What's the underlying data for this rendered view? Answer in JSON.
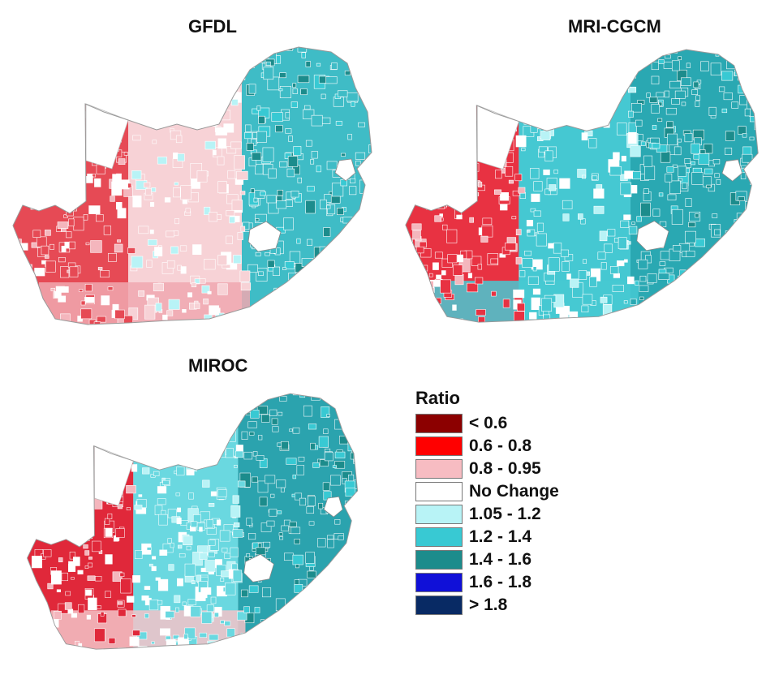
{
  "panels": [
    {
      "title": "GFDL",
      "west": "#e64a55",
      "central": "#f7d2d6",
      "east": "#3fbcc6",
      "south": "#f0a8b0"
    },
    {
      "title": "MRI-CGCM",
      "west": "#e83242",
      "central": "#45c8d2",
      "east": "#2aa8b2",
      "south": "#47c9d2"
    },
    {
      "title": "MIROC",
      "west": "#e0283a",
      "central": "#6ad8e0",
      "east": "#2ba3ae",
      "south": "#f3c3c8"
    }
  ],
  "legend": {
    "title": "Ratio",
    "items": [
      {
        "label": "< 0.6",
        "color": "#8c0000"
      },
      {
        "label": "0.6 - 0.8",
        "color": "#ff0000"
      },
      {
        "label": "0.8 - 0.95",
        "color": "#f7bcc2"
      },
      {
        "label": "No Change",
        "color": "#ffffff"
      },
      {
        "label": "1.05 - 1.2",
        "color": "#b8f3f6"
      },
      {
        "label": "1.2 - 1.4",
        "color": "#38c9d3"
      },
      {
        "label": "1.4 - 1.6",
        "color": "#1c8c8c"
      },
      {
        "label": "1.6 - 1.8",
        "color": "#1010d8"
      },
      {
        "label": "> 1.8",
        "color": "#082a64"
      }
    ]
  }
}
